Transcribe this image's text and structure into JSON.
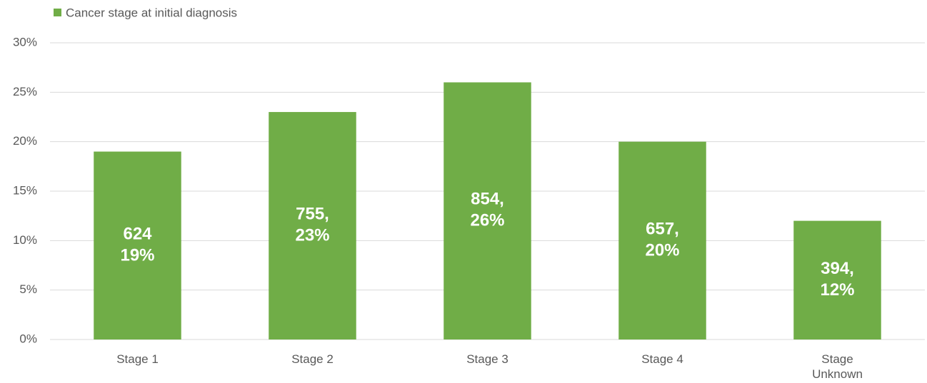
{
  "chart_data": {
    "type": "bar",
    "legend": "Cancer stage at initial diagnosis",
    "categories": [
      "Stage 1",
      "Stage 2",
      "Stage 3",
      "Stage 4",
      "Stage Unknown"
    ],
    "values": [
      19,
      23,
      26,
      20,
      12
    ],
    "value_labels": [
      [
        "624",
        "19%"
      ],
      [
        "755,",
        "23%"
      ],
      [
        "854,",
        "26%"
      ],
      [
        "657,",
        "20%"
      ],
      [
        "394,",
        "12%"
      ]
    ],
    "color": "#70ad47",
    "ylim": [
      0,
      30
    ],
    "yticks": [
      {
        "value": 0,
        "label": "0%"
      },
      {
        "value": 5,
        "label": "5%"
      },
      {
        "value": 10,
        "label": "10%"
      },
      {
        "value": 15,
        "label": "15%"
      },
      {
        "value": 20,
        "label": "20%"
      },
      {
        "value": 25,
        "label": "25%"
      },
      {
        "value": 30,
        "label": "30%"
      }
    ],
    "grid": true
  }
}
